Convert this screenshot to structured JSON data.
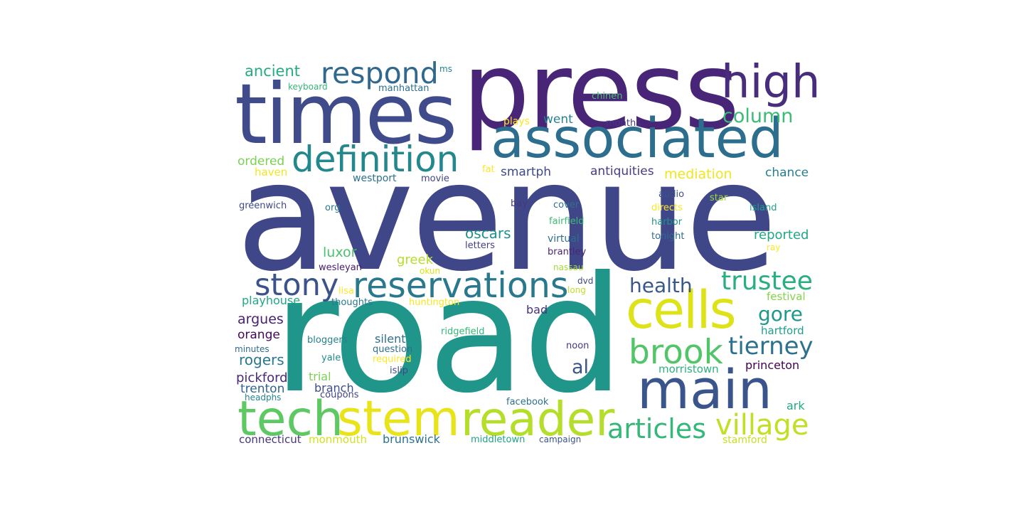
{
  "words": [
    {
      "text": "avenue",
      "color": "#404788"
    },
    {
      "text": "road",
      "color": "#20968b"
    },
    {
      "text": "press",
      "color": "#482576"
    },
    {
      "text": "times",
      "color": "#3f4b8a"
    },
    {
      "text": "associated",
      "color": "#2d6e8e"
    },
    {
      "text": "high",
      "color": "#472d7b"
    },
    {
      "text": "main",
      "color": "#3a548c"
    },
    {
      "text": "cells",
      "color": "#dde318"
    },
    {
      "text": "reader",
      "color": "#b5de2b"
    },
    {
      "text": "stem",
      "color": "#e8e419"
    },
    {
      "text": "tech",
      "color": "#5ec962"
    },
    {
      "text": "reservations",
      "color": "#2a788e"
    },
    {
      "text": "definition",
      "color": "#23888e"
    },
    {
      "text": "respond",
      "color": "#31688e"
    },
    {
      "text": "brook",
      "color": "#52c569"
    },
    {
      "text": "stony",
      "color": "#3b528b"
    },
    {
      "text": "articles",
      "color": "#35b779"
    },
    {
      "text": "village",
      "color": "#c2df23"
    },
    {
      "text": "trustee",
      "color": "#29af7f"
    },
    {
      "text": "tierney",
      "color": "#2c728e"
    },
    {
      "text": "health",
      "color": "#38588c"
    },
    {
      "text": "gore",
      "color": "#1f988b"
    },
    {
      "text": "column",
      "color": "#3bbb75"
    },
    {
      "text": "al",
      "color": "#39568c"
    },
    {
      "text": "ancient",
      "color": "#25ab82"
    },
    {
      "text": "oscars",
      "color": "#21918c"
    },
    {
      "text": "luxor",
      "color": "#4ac16d"
    },
    {
      "text": "greek",
      "color": "#b8de29"
    },
    {
      "text": "reported",
      "color": "#22a785"
    },
    {
      "text": "went",
      "color": "#26828e"
    },
    {
      "text": "smartph",
      "color": "#3e4a89"
    },
    {
      "text": "antiquities",
      "color": "#433e85"
    },
    {
      "text": "mediation",
      "color": "#f1e51d"
    },
    {
      "text": "chance",
      "color": "#277f8e"
    },
    {
      "text": "ordered",
      "color": "#7ad151"
    },
    {
      "text": "haven",
      "color": "#f4e61e"
    },
    {
      "text": "rogers",
      "color": "#2a768e"
    },
    {
      "text": "argues",
      "color": "#481f70"
    },
    {
      "text": "orange",
      "color": "#450559"
    },
    {
      "text": "pickford",
      "color": "#472a7a"
    },
    {
      "text": "trenton",
      "color": "#32658e"
    },
    {
      "text": "silent",
      "color": "#2e6f8e"
    },
    {
      "text": "branch",
      "color": "#3c4f8a"
    },
    {
      "text": "trial",
      "color": "#7ad151"
    },
    {
      "text": "playhouse",
      "color": "#22a884"
    },
    {
      "text": "bad",
      "color": "#46327e"
    },
    {
      "text": "hartford",
      "color": "#1f9e89"
    },
    {
      "text": "morristown",
      "color": "#2db27d"
    },
    {
      "text": "princeton",
      "color": "#440154"
    },
    {
      "text": "ark",
      "color": "#22a884"
    },
    {
      "text": "brunswick",
      "color": "#2b748e"
    },
    {
      "text": "connecticut",
      "color": "#453581"
    },
    {
      "text": "monmouth",
      "color": "#d2e21b"
    },
    {
      "text": "stamford",
      "color": "#c8e020"
    },
    {
      "text": "middletown",
      "color": "#20a386"
    },
    {
      "text": "campaign",
      "color": "#3b528b"
    },
    {
      "text": "facebook",
      "color": "#2d708e"
    },
    {
      "text": "festival",
      "color": "#84d44b"
    },
    {
      "text": "keyboard",
      "color": "#34b679"
    },
    {
      "text": "manhattan",
      "color": "#2d708e"
    },
    {
      "text": "ms",
      "color": "#26828e"
    },
    {
      "text": "chinen",
      "color": "#4ac16d"
    },
    {
      "text": "plays",
      "color": "#fde725"
    },
    {
      "text": "months",
      "color": "#453882"
    },
    {
      "text": "fat",
      "color": "#fde725"
    },
    {
      "text": "westport",
      "color": "#2c718e"
    },
    {
      "text": "movie",
      "color": "#414487"
    },
    {
      "text": "greenwich",
      "color": "#3e4989"
    },
    {
      "text": "org",
      "color": "#2a778e"
    },
    {
      "text": "audio",
      "color": "#3b528b"
    },
    {
      "text": "bay",
      "color": "#453781"
    },
    {
      "text": "cover",
      "color": "#2c728e"
    },
    {
      "text": "fairfield",
      "color": "#3dbc74"
    },
    {
      "text": "directs",
      "color": "#fde725"
    },
    {
      "text": "star",
      "color": "#a0da39"
    },
    {
      "text": "island",
      "color": "#1fa188"
    },
    {
      "text": "harbor",
      "color": "#21918c"
    },
    {
      "text": "virtual",
      "color": "#2e6e8e"
    },
    {
      "text": "tonight",
      "color": "#2f6b8e"
    },
    {
      "text": "letters",
      "color": "#433e85"
    },
    {
      "text": "ray",
      "color": "#fde725"
    },
    {
      "text": "brantley",
      "color": "#482576"
    },
    {
      "text": "wesleyan",
      "color": "#481c6e"
    },
    {
      "text": "okun",
      "color": "#dde318"
    },
    {
      "text": "nassau",
      "color": "#a5db36"
    },
    {
      "text": "lisa",
      "color": "#fde725"
    },
    {
      "text": "dvd",
      "color": "#3e4989"
    },
    {
      "text": "long",
      "color": "#c0df25"
    },
    {
      "text": "thoughts",
      "color": "#2a788e"
    },
    {
      "text": "huntington",
      "color": "#f8e621"
    },
    {
      "text": "bloggers",
      "color": "#26818e"
    },
    {
      "text": "ridgefield",
      "color": "#35b779"
    },
    {
      "text": "minutes",
      "color": "#2f6c8e"
    },
    {
      "text": "question",
      "color": "#2e6e8e"
    },
    {
      "text": "yale",
      "color": "#228c8d"
    },
    {
      "text": "required",
      "color": "#fde725"
    },
    {
      "text": "noon",
      "color": "#453781"
    },
    {
      "text": "islip",
      "color": "#3e4989"
    },
    {
      "text": "headphs",
      "color": "#25858e"
    },
    {
      "text": "coupons",
      "color": "#414487"
    }
  ]
}
